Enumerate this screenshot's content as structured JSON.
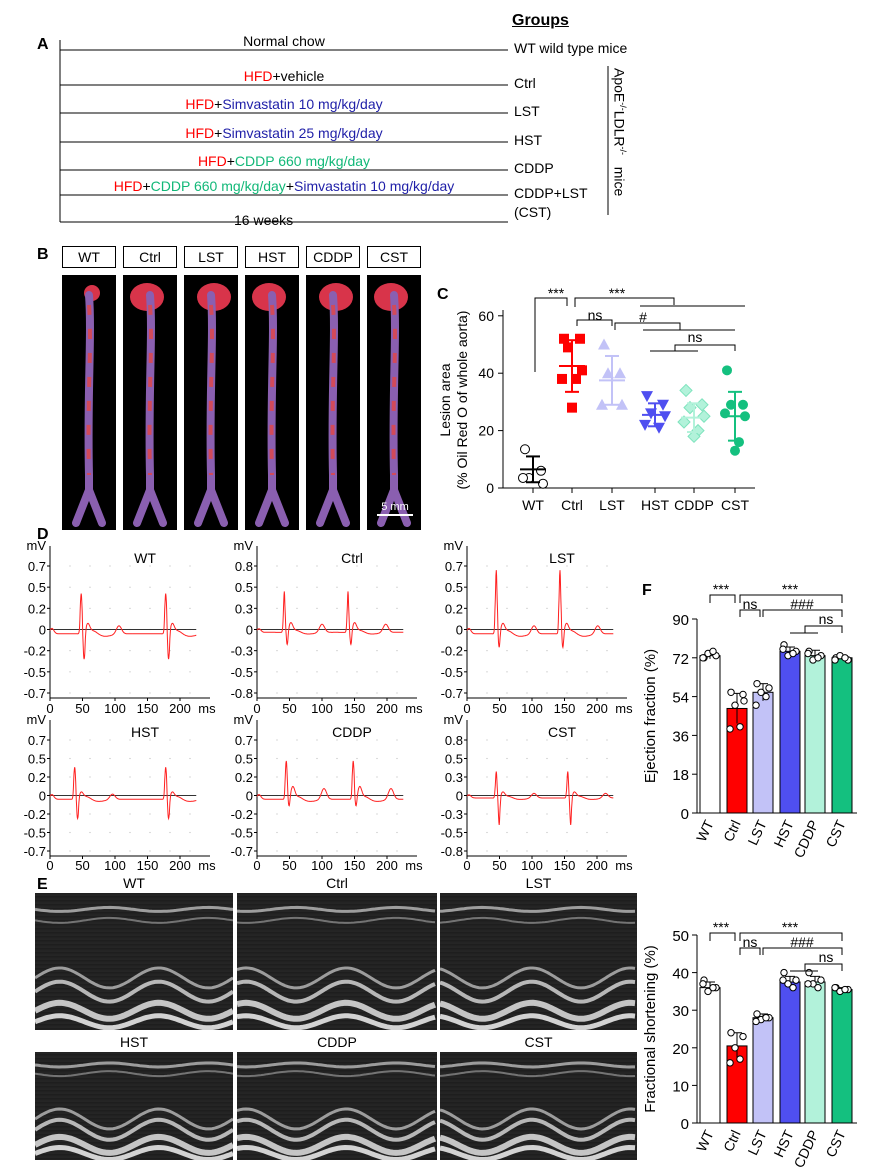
{
  "panel_labels": {
    "a": "A",
    "b": "B",
    "c": "C",
    "d": "D",
    "e": "E",
    "f": "F"
  },
  "panel_a": {
    "groups_header": "Groups",
    "rows": [
      {
        "segments": [
          {
            "text": "Normal chow",
            "color": "#000000"
          }
        ],
        "group": "WT wild type mice"
      },
      {
        "segments": [
          {
            "text": "HFD",
            "color": "#ff0000"
          },
          {
            "text": "+vehicle",
            "color": "#000000"
          }
        ],
        "group": "Ctrl"
      },
      {
        "segments": [
          {
            "text": "HFD",
            "color": "#ff0000"
          },
          {
            "text": "+",
            "color": "#000000"
          },
          {
            "text": "Simvastatin 10 mg/kg/day",
            "color": "#1f1fa8"
          }
        ],
        "group": "LST"
      },
      {
        "segments": [
          {
            "text": "HFD",
            "color": "#ff0000"
          },
          {
            "text": "+",
            "color": "#000000"
          },
          {
            "text": "Simvastatin 25 mg/kg/day",
            "color": "#1f1fa8"
          }
        ],
        "group": "HST"
      },
      {
        "segments": [
          {
            "text": "HFD",
            "color": "#ff0000"
          },
          {
            "text": "+",
            "color": "#000000"
          },
          {
            "text": "CDDP 660 mg/kg/day",
            "color": "#12b878"
          }
        ],
        "group": "CDDP"
      },
      {
        "segments": [
          {
            "text": "HFD",
            "color": "#ff0000"
          },
          {
            "text": "+",
            "color": "#000000"
          },
          {
            "text": "CDDP 660 mg/kg/day",
            "color": "#12b878"
          },
          {
            "text": "+",
            "color": "#000000"
          },
          {
            "text": "Simvastatin 10 mg/kg/day",
            "color": "#1f1fa8"
          }
        ],
        "group": "CDDP+LST",
        "group_line2": "(CST)"
      }
    ],
    "duration": "16 weeks",
    "mouse_strain": {
      "apoe": "ApoE",
      "ldlr": "LDLR",
      "ko": "-/-",
      "mice": "mice"
    }
  },
  "panel_b": {
    "labels": [
      "WT",
      "Ctrl",
      "LST",
      "HST",
      "CDDP",
      "CST"
    ],
    "scale_bar": "5 mm"
  },
  "colors": {
    "WT": "#ffffff",
    "Ctrl": "#ff0000",
    "LST": "#c2c2f7",
    "HST": "#4f4ff0",
    "CDDP": "#b2f2da",
    "CST": "#14c07f"
  },
  "chart_data": [
    {
      "type": "scatter",
      "panel": "C",
      "ylabel": "Lesion area",
      "ylabel2": "(% Oil Red O of whole aorta)",
      "ylim": [
        0,
        60
      ],
      "yticks": [
        "0",
        "20",
        "40",
        "60"
      ],
      "categories": [
        "WT",
        "Ctrl",
        "LST",
        "HST",
        "CDDP",
        "CST"
      ],
      "points": [
        [
          13.5,
          6,
          3.5,
          1.5,
          3.5
        ],
        [
          52,
          52,
          49,
          41,
          38,
          38,
          28
        ],
        [
          50,
          40,
          40,
          29,
          29
        ],
        [
          32,
          29,
          26,
          25,
          22,
          21
        ],
        [
          34,
          29,
          28,
          25,
          23,
          20,
          18
        ],
        [
          41,
          29,
          29,
          25,
          26,
          16,
          13
        ]
      ],
      "mean": [
        6.5,
        42.5,
        37.5,
        25.5,
        24.5,
        25
      ],
      "sd": [
        4.5,
        9,
        8.5,
        4,
        5,
        8.5
      ],
      "annotations": [
        "***",
        "***",
        "ns",
        "#",
        "ns"
      ]
    },
    {
      "type": "line",
      "panel": "D",
      "yunit": "mV",
      "xunit": "ms",
      "xticks": [
        "0",
        "50",
        "100",
        "150",
        "200"
      ],
      "traces": [
        {
          "title": "WT",
          "yticks": [
            "0.7",
            "0.5",
            "0.2",
            "0",
            "-0.2",
            "-0.5",
            "-0.7"
          ],
          "beats": [
            48,
            178
          ],
          "r": 0.45,
          "s": -0.3,
          "t": 0.08
        },
        {
          "title": "Ctrl",
          "yticks": [
            "0.8",
            "0.5",
            "0.3",
            "0",
            "-0.3",
            "-0.5",
            "-0.8"
          ],
          "beats": [
            42,
            140
          ],
          "r": 0.5,
          "s": -0.2,
          "t": 0.12
        },
        {
          "title": "LST",
          "yticks": [
            "0.7",
            "0.5",
            "0.2",
            "0",
            "-0.2",
            "-0.5",
            "-0.7"
          ],
          "beats": [
            45,
            143
          ],
          "r": 0.7,
          "s": -0.15,
          "t": 0.08
        },
        {
          "title": "HST",
          "yticks": [
            "0.7",
            "0.5",
            "0.2",
            "0",
            "-0.2",
            "-0.5",
            "-0.7"
          ],
          "beats": [
            38,
            178
          ],
          "r": 0.4,
          "s": -0.25,
          "t": 0.06
        },
        {
          "title": "CDDP",
          "yticks": [
            "0.7",
            "0.5",
            "0.2",
            "0",
            "-0.2",
            "-0.5",
            "-0.7"
          ],
          "beats": [
            45,
            148
          ],
          "r": 0.5,
          "s": -0.1,
          "t": 0.12
        },
        {
          "title": "CST",
          "yticks": [
            "0.8",
            "0.5",
            "0.3",
            "0",
            "-0.3",
            "-0.5",
            "-0.8"
          ],
          "beats": [
            45,
            155
          ],
          "r": 0.4,
          "s": -0.4,
          "t": 0.08
        }
      ]
    },
    {
      "type": "bar",
      "panel": "F",
      "ylabel": "Ejection fraction (%)",
      "ylim": [
        0,
        90
      ],
      "yticks": [
        "0",
        "18",
        "36",
        "54",
        "72",
        "90"
      ],
      "categories": [
        "WT",
        "Ctrl",
        "LST",
        "HST",
        "CDDP",
        "CST"
      ],
      "values": [
        73,
        48.5,
        56,
        75,
        73,
        72
      ],
      "sd": [
        1.5,
        7,
        4,
        2,
        2.5,
        1
      ],
      "points": [
        [
          72,
          73,
          74,
          75,
          72
        ],
        [
          56,
          55,
          50,
          40,
          39,
          52
        ],
        [
          60,
          58,
          56,
          54,
          50
        ],
        [
          78,
          75,
          73,
          74,
          76
        ],
        [
          75,
          73,
          71,
          72,
          74
        ],
        [
          72,
          71,
          73,
          72,
          71
        ]
      ],
      "annotations": [
        "***",
        "***",
        "ns",
        "###",
        "ns"
      ]
    },
    {
      "type": "bar",
      "panel": "E",
      "ylabel": "Fractional shortening (%)",
      "ylim": [
        0,
        50
      ],
      "yticks": [
        "0",
        "10",
        "20",
        "30",
        "40",
        "50"
      ],
      "categories": [
        "WT",
        "Ctrl",
        "LST",
        "HST",
        "CDDP",
        "CST"
      ],
      "values": [
        36,
        20.5,
        28,
        37.5,
        37.5,
        35.5
      ],
      "sd": [
        1.5,
        3.5,
        1,
        1.5,
        1.5,
        0.5
      ],
      "points": [
        [
          38,
          36,
          35,
          36,
          37
        ],
        [
          24,
          23,
          20,
          17,
          16
        ],
        [
          29,
          28,
          27.5,
          28,
          27
        ],
        [
          40,
          38,
          37,
          36,
          38
        ],
        [
          40,
          38,
          37,
          36,
          37
        ],
        [
          36,
          35.5,
          35,
          35.5,
          36
        ]
      ],
      "annotations": [
        "***",
        "***",
        "ns",
        "###",
        "ns"
      ]
    }
  ],
  "panel_e": {
    "titles": [
      "WT",
      "Ctrl",
      "LST",
      "HST",
      "CDDP",
      "CST"
    ]
  }
}
